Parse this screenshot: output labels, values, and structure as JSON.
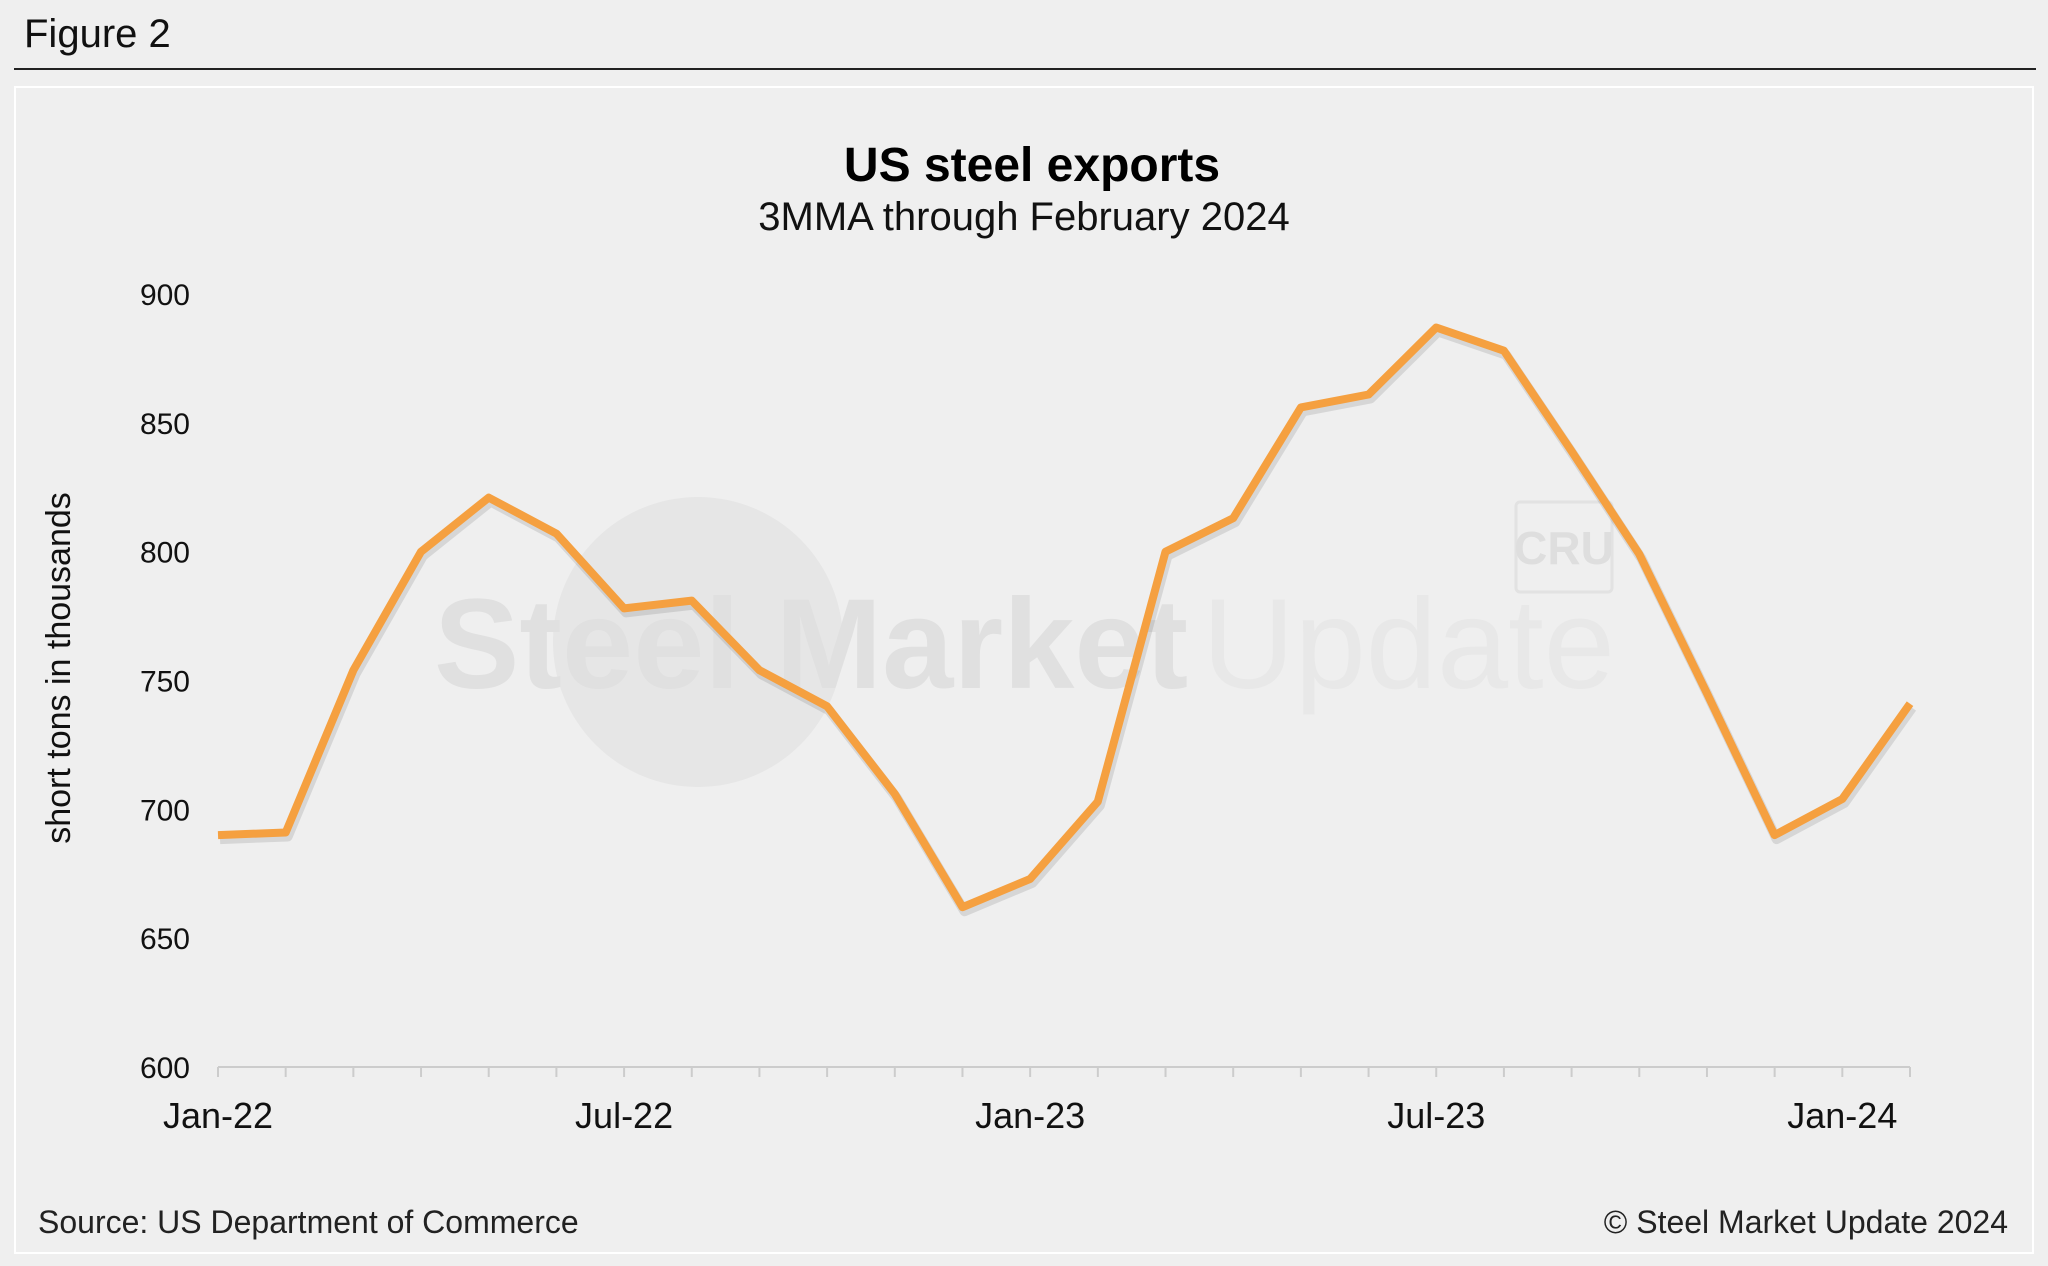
{
  "figure_label": "Figure 2",
  "source": "Source: US Department of Commerce",
  "copyright": "© Steel Market Update 2024",
  "colors": {
    "line": "#f5a040",
    "axis": "#cccccc",
    "text": "#111111",
    "watermark": "#e2e2e2"
  },
  "watermark": {
    "brand_bold": "Steel Market",
    "brand_light": "Update",
    "badge": "CRU"
  },
  "chart_data": {
    "type": "line",
    "title": "US steel exports",
    "subtitle": "3MMA through February 2024",
    "xlabel": "",
    "ylabel": "short tons in thousands",
    "ylim": [
      600,
      900
    ],
    "yticks": [
      600,
      650,
      700,
      750,
      800,
      850,
      900
    ],
    "grid": false,
    "legend": "none",
    "categories": [
      "Jan-22",
      "Feb-22",
      "Mar-22",
      "Apr-22",
      "May-22",
      "Jun-22",
      "Jul-22",
      "Aug-22",
      "Sep-22",
      "Oct-22",
      "Nov-22",
      "Dec-22",
      "Jan-23",
      "Feb-23",
      "Mar-23",
      "Apr-23",
      "May-23",
      "Jun-23",
      "Jul-23",
      "Aug-23",
      "Sep-23",
      "Oct-23",
      "Nov-23",
      "Dec-23",
      "Jan-24",
      "Feb-24"
    ],
    "x_tick_labels": [
      "Jan-22",
      "Jul-22",
      "Jan-23",
      "Jul-23",
      "Jan-24"
    ],
    "series": [
      {
        "name": "US steel exports",
        "values": [
          690,
          691,
          754,
          800,
          821,
          807,
          778,
          781,
          754,
          740,
          706,
          662,
          673,
          703,
          800,
          813,
          856,
          861,
          887,
          878,
          839,
          799,
          745,
          690,
          704,
          741
        ]
      }
    ]
  }
}
